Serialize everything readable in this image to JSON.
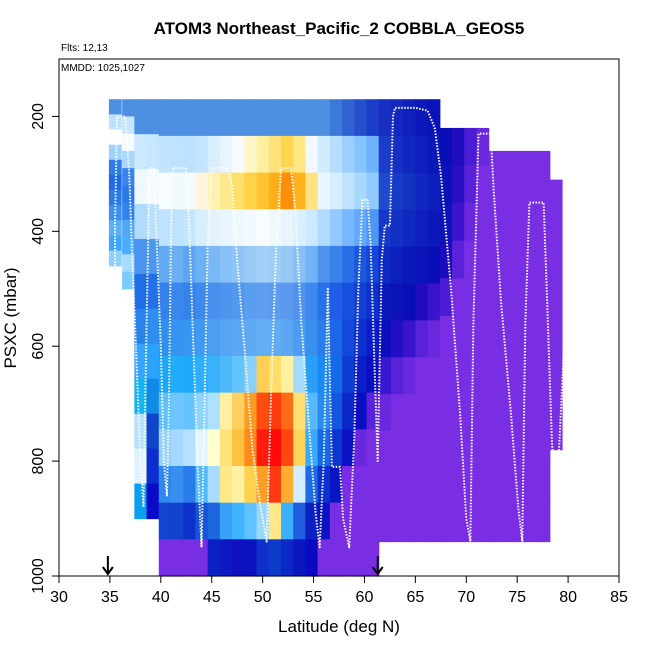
{
  "chart_data": {
    "type": "heatmap",
    "title": "ATOM3 Northeast_Pacific_2 COBBLA_GEOS5",
    "annotations": [
      "Flts: 12,13",
      "MMDD: 1025,1027"
    ],
    "xlabel": "Latitude (deg N)",
    "ylabel": "PSXC (mbar)",
    "xlim": [
      30,
      85
    ],
    "ylim": [
      1000,
      100
    ],
    "x_ticks": [
      30,
      35,
      40,
      45,
      50,
      55,
      60,
      65,
      70,
      75,
      80,
      85
    ],
    "y_ticks": [
      200,
      400,
      600,
      800,
      1000
    ],
    "markers_at_latitude": [
      34.8,
      61.3
    ],
    "grid": false,
    "columns": [
      {
        "lat": 35.5,
        "top": 170,
        "bottom": 460,
        "colors": [
          "#4d8fe0",
          "#bfe2ff",
          "#ffffff",
          "#9fd3ff",
          "#2f7bea",
          "#1e6ae8",
          "#2a7ae8",
          "#3a8ff0",
          "#5cb0f8",
          "#3ea6ff",
          "#8fd0ff"
        ]
      },
      {
        "lat": 36.8,
        "top": 170,
        "bottom": 500,
        "colors": [
          "#4d8fe0",
          "#c6e6ff",
          "#f5fbff",
          "#a8d6ff",
          "#3884ec",
          "#2a78ea",
          "#3384ea",
          "#53a6f5",
          "#4aaeff",
          "#a7dcff",
          "#7ccbff"
        ]
      },
      {
        "lat": 38.0,
        "top": 170,
        "bottom": 900,
        "colors": [
          "#4d8fe0",
          "#cbe8ff",
          "#eef8ff",
          "#b0dbff",
          "#4a94ef",
          "#1f6ee8",
          "#2a83e9",
          "#38a2ff",
          "#12b4f2",
          "#b4e2ff",
          "#dff2ff",
          "#0c9ef0"
        ]
      },
      {
        "lat": 39.2,
        "top": 170,
        "bottom": 900,
        "colors": [
          "#4d8fe0",
          "#c7e6ff",
          "#f4faff",
          "#b8dfff",
          "#4c98f0",
          "#2370e8",
          "#2f8dee",
          "#2aa4fb",
          "#118ae6",
          "#0f45c9",
          "#0c2ed0",
          "#0a0ac8"
        ]
      },
      {
        "lat": 40.4,
        "top": 170,
        "bottom": 1000,
        "colors": [
          "#4d8fe0",
          "#c2e4ff",
          "#f7fcff",
          "#bfe3ff",
          "#64aaf2",
          "#3482ea",
          "#2f90ee",
          "#1ca6fa",
          "#5ec0ff",
          "#97d2ff",
          "#2f88ef",
          "#1244d0",
          "#7a2ee3"
        ]
      },
      {
        "lat": 41.6,
        "top": 170,
        "bottom": 1000,
        "colors": [
          "#4d8fe0",
          "#bfe3ff",
          "#f1faff",
          "#bfe3ff",
          "#6cb0f4",
          "#3a88ec",
          "#3594ef",
          "#22aafb",
          "#6fc6ff",
          "#a3d8ff",
          "#3790f0",
          "#1342cf",
          "#7a2ee3"
        ]
      },
      {
        "lat": 42.8,
        "top": 170,
        "bottom": 1000,
        "colors": [
          "#4d8fe0",
          "#bde2ff",
          "#f3fbff",
          "#c5e6ff",
          "#5da5f1",
          "#3583ea",
          "#3996ef",
          "#1eaafb",
          "#65c4ff",
          "#b5e1ff",
          "#2a7cec",
          "#0d32c9",
          "#7a2ee3"
        ]
      },
      {
        "lat": 44.0,
        "top": 170,
        "bottom": 1000,
        "colors": [
          "#4d8fe0",
          "#c4e5ff",
          "#fdf6da",
          "#d7eeff",
          "#6cb1f5",
          "#3d8aec",
          "#3e9af0",
          "#2eaefb",
          "#8dd4ff",
          "#e3f4ff",
          "#53b9ff",
          "#1554d6",
          "#7a2ee3"
        ]
      },
      {
        "lat": 45.2,
        "top": 170,
        "bottom": 1000,
        "colors": [
          "#4d8fe0",
          "#d9efff",
          "#fff1b0",
          "#e3f3ff",
          "#79b8f5",
          "#4790ee",
          "#4b9ff1",
          "#3ab2fb",
          "#aee0ff",
          "#ffffd0",
          "#a7dcff",
          "#1e66dd",
          "#0b1fc4"
        ]
      },
      {
        "lat": 46.4,
        "top": 170,
        "bottom": 1000,
        "colors": [
          "#4d8fe0",
          "#e8f5ff",
          "#ffe88c",
          "#e9f6ff",
          "#86c0f6",
          "#4d95ee",
          "#55a5f2",
          "#4db9fb",
          "#fff0a0",
          "#ffe27a",
          "#ffe888",
          "#3aa0f8",
          "#0d17c2"
        ]
      },
      {
        "lat": 47.6,
        "top": 170,
        "bottom": 1000,
        "colors": [
          "#4d8fe0",
          "#f5fbff",
          "#ffe06a",
          "#eef8ff",
          "#8fc5f6",
          "#5398ef",
          "#5aa8f3",
          "#63c3fb",
          "#ffd060",
          "#ffc040",
          "#fff2a4",
          "#3fb5ff",
          "#0e10bf"
        ]
      },
      {
        "lat": 48.8,
        "top": 170,
        "bottom": 1000,
        "colors": [
          "#4d8fe0",
          "#fff6c8",
          "#ffd24a",
          "#f3faff",
          "#99cbf6",
          "#5a9eef",
          "#5eabf3",
          "#8ad0fb",
          "#ff9b22",
          "#ff8a1a",
          "#ffd24e",
          "#5fc3ff",
          "#0d12bf"
        ]
      },
      {
        "lat": 50.0,
        "top": 170,
        "bottom": 1000,
        "colors": [
          "#4d8fe0",
          "#ffefa0",
          "#ffc430",
          "#f8fcff",
          "#a3d0f7",
          "#609fef",
          "#64aff3",
          "#ffcf55",
          "#ff4d10",
          "#ff1c0a",
          "#ff9d24",
          "#9ad7ff",
          "#0d2fcb"
        ]
      },
      {
        "lat": 51.2,
        "top": 170,
        "bottom": 1000,
        "colors": [
          "#4d8fe0",
          "#ffe37a",
          "#ffae18",
          "#eef8ff",
          "#9ecdf7",
          "#5e9cef",
          "#62acf3",
          "#ffdd66",
          "#ff3a0d",
          "#ff0a08",
          "#ff3a12",
          "#ffe888",
          "#0c3acb"
        ]
      },
      {
        "lat": 52.4,
        "top": 170,
        "bottom": 1000,
        "colors": [
          "#4d8fe0",
          "#ffd552",
          "#ff8f0a",
          "#e8f5ff",
          "#97c9f6",
          "#5b99ef",
          "#5ca6f2",
          "#fff0a2",
          "#ff6c18",
          "#ff4810",
          "#ffad30",
          "#3ab0ff",
          "#0b28c7"
        ]
      },
      {
        "lat": 53.6,
        "top": 170,
        "bottom": 1000,
        "colors": [
          "#4d8fe0",
          "#ffe883",
          "#ffb21e",
          "#dbf0ff",
          "#88c1f5",
          "#4f93ee",
          "#4c9cf1",
          "#a4dbff",
          "#ffe070",
          "#ffd55a",
          "#d1edff",
          "#1f5ee0",
          "#0b18c2"
        ]
      },
      {
        "lat": 54.8,
        "top": 170,
        "bottom": 1000,
        "colors": [
          "#4d8fe0",
          "#f1f9ff",
          "#ffe082",
          "#cde9ff",
          "#71b4f5",
          "#3f88ec",
          "#3a8eef",
          "#2a9ff7",
          "#58b9ff",
          "#3aa8ff",
          "#1f6be4",
          "#0c20c4",
          "#0a0ac0"
        ]
      },
      {
        "lat": 56.0,
        "top": 170,
        "bottom": 1000,
        "colors": [
          "#4d8fe0",
          "#d1ebff",
          "#e9f6ff",
          "#b0dbff",
          "#4f93ee",
          "#2670ea",
          "#2a7eec",
          "#1e88f2",
          "#2a8aee",
          "#156ae6",
          "#0d32cf",
          "#0a12c2",
          "#7a2ee3"
        ]
      },
      {
        "lat": 57.2,
        "top": 170,
        "bottom": 1000,
        "colors": [
          "#3d7ad8",
          "#b6deff",
          "#d6efff",
          "#93c9ff",
          "#3a82ea",
          "#1e5ee4",
          "#1c66e8",
          "#146ae8",
          "#1457df",
          "#0d36cf",
          "#0a15c4",
          "#7a2ee3",
          "#7a2ee3"
        ]
      },
      {
        "lat": 58.4,
        "top": 170,
        "bottom": 1000,
        "colors": [
          "#2f63d2",
          "#9ccfff",
          "#c0e4ff",
          "#79b7ff",
          "#2a6ee6",
          "#1850de",
          "#1249d8",
          "#0f3dd2",
          "#0b28cb",
          "#0a14c4",
          "#7a2ee3",
          "#7a2ee3",
          "#7a2ee3"
        ]
      },
      {
        "lat": 59.6,
        "top": 170,
        "bottom": 1000,
        "colors": [
          "#2550cd",
          "#86c4ff",
          "#a9d8ff",
          "#63a8fa",
          "#1b58df",
          "#133fd6",
          "#0e30cf",
          "#0b1ec9",
          "#0a10c2",
          "#6a28de",
          "#7a2ee3",
          "#7a2ee3",
          "#7a2ee3"
        ]
      },
      {
        "lat": 60.8,
        "top": 170,
        "bottom": 1000,
        "colors": [
          "#1c3dc8",
          "#6fb4fb",
          "#92caff",
          "#4f96f5",
          "#1446d8",
          "#0d2fcd",
          "#0a1dc8",
          "#0a10c2",
          "#5a22da",
          "#7a2ee3",
          "#7a2ee3",
          "#7a2ee3",
          "#7a2ee3"
        ]
      },
      {
        "lat": 62.0,
        "top": 170,
        "bottom": 940,
        "colors": [
          "#1630c2",
          "#1a3cc8",
          "#1f4acd",
          "#1538c8",
          "#0f28c2",
          "#0a18bc",
          "#0a0ebc",
          "#3a18cf",
          "#6a28de",
          "#7a2ee3",
          "#7a2ee3",
          "#7a2ee3"
        ]
      },
      {
        "lat": 63.2,
        "top": 170,
        "bottom": 940,
        "colors": [
          "#1228c0",
          "#1530c2",
          "#173bc8",
          "#1230c2",
          "#0d20bd",
          "#0a12b8",
          "#240ec4",
          "#5a22d8",
          "#7a2ee3",
          "#7a2ee3",
          "#7a2ee3",
          "#7a2ee3"
        ]
      },
      {
        "lat": 64.4,
        "top": 170,
        "bottom": 940,
        "colors": [
          "#0e20bd",
          "#1028bf",
          "#1232c2",
          "#0f28bf",
          "#0b18ba",
          "#0a0eb6",
          "#3a14cc",
          "#6a28de",
          "#7a2ee3",
          "#7a2ee3",
          "#7a2ee3",
          "#7a2ee3"
        ]
      },
      {
        "lat": 65.6,
        "top": 170,
        "bottom": 940,
        "colors": [
          "#0c18ba",
          "#0d20bd",
          "#0f28bf",
          "#0d20bd",
          "#0a14b8",
          "#200cc0",
          "#5a22d8",
          "#7a2ee3",
          "#7a2ee3",
          "#7a2ee3",
          "#7a2ee3",
          "#7a2ee3"
        ]
      },
      {
        "lat": 66.8,
        "top": 170,
        "bottom": 940,
        "colors": [
          "#0a12b8",
          "#0b18ba",
          "#0c1ebc",
          "#0b18ba",
          "#0a0eb6",
          "#3a14cc",
          "#6a28de",
          "#7a2ee3",
          "#7a2ee3",
          "#7a2ee3",
          "#7a2ee3",
          "#7a2ee3"
        ]
      },
      {
        "lat": 68.0,
        "top": 220,
        "bottom": 940,
        "colors": [
          "#0a0eb6",
          "#0a12b8",
          "#0a14b8",
          "#1a0cbe",
          "#4a1cd4",
          "#7a2ee3",
          "#7a2ee3",
          "#7a2ee3",
          "#7a2ee3",
          "#7a2ee3",
          "#7a2ee3"
        ]
      },
      {
        "lat": 69.2,
        "top": 220,
        "bottom": 940,
        "colors": [
          "#200cc0",
          "#2a0ec4",
          "#3a14cc",
          "#5a22d8",
          "#7a2ee3",
          "#7a2ee3",
          "#7a2ee3",
          "#7a2ee3",
          "#7a2ee3",
          "#7a2ee3",
          "#7a2ee3"
        ]
      },
      {
        "lat": 70.4,
        "top": 220,
        "bottom": 940,
        "colors": [
          "#4a1cd4",
          "#5a22d8",
          "#6a28de",
          "#7a2ee3",
          "#7a2ee3",
          "#7a2ee3",
          "#7a2ee3",
          "#7a2ee3",
          "#7a2ee3",
          "#7a2ee3",
          "#7a2ee3"
        ]
      },
      {
        "lat": 71.6,
        "top": 220,
        "bottom": 940,
        "colors": [
          "#6a28de",
          "#7a2ee3",
          "#7a2ee3",
          "#7a2ee3",
          "#7a2ee3",
          "#7a2ee3",
          "#7a2ee3",
          "#7a2ee3",
          "#7a2ee3",
          "#7a2ee3",
          "#7a2ee3"
        ]
      },
      {
        "lat": 72.8,
        "top": 260,
        "bottom": 940,
        "colors": [
          "#7a2ee3",
          "#7a2ee3",
          "#7a2ee3",
          "#7a2ee3",
          "#7a2ee3",
          "#7a2ee3",
          "#7a2ee3",
          "#7a2ee3",
          "#7a2ee3",
          "#7a2ee3"
        ]
      },
      {
        "lat": 74.0,
        "top": 260,
        "bottom": 940,
        "colors": [
          "#7a2ee3",
          "#7a2ee3",
          "#7a2ee3",
          "#7a2ee3",
          "#7a2ee3",
          "#7a2ee3",
          "#7a2ee3",
          "#7a2ee3",
          "#7a2ee3",
          "#7a2ee3"
        ]
      },
      {
        "lat": 75.2,
        "top": 260,
        "bottom": 940,
        "colors": [
          "#7a2ee3",
          "#7a2ee3",
          "#7a2ee3",
          "#7a2ee3",
          "#7a2ee3",
          "#7a2ee3",
          "#7a2ee3",
          "#7a2ee3",
          "#7a2ee3",
          "#7a2ee3"
        ]
      },
      {
        "lat": 76.4,
        "top": 260,
        "bottom": 940,
        "colors": [
          "#7a2ee3",
          "#7a2ee3",
          "#7a2ee3",
          "#7a2ee3",
          "#7a2ee3",
          "#7a2ee3",
          "#7a2ee3",
          "#7a2ee3",
          "#7a2ee3",
          "#7a2ee3"
        ]
      },
      {
        "lat": 77.6,
        "top": 260,
        "bottom": 940,
        "colors": [
          "#7a2ee3",
          "#7a2ee3",
          "#7a2ee3",
          "#7a2ee3",
          "#7a2ee3",
          "#7a2ee3",
          "#7a2ee3",
          "#7a2ee3",
          "#7a2ee3",
          "#7a2ee3"
        ]
      },
      {
        "lat": 78.8,
        "top": 310,
        "bottom": 780,
        "colors": [
          "#7a2ee3",
          "#7a2ee3",
          "#7a2ee3",
          "#7a2ee3",
          "#7a2ee3",
          "#7a2ee3",
          "#7a2ee3"
        ]
      }
    ],
    "flight_track": [
      [
        35.5,
        460
      ],
      [
        35.5,
        390
      ],
      [
        35.7,
        200
      ],
      [
        36.5,
        200
      ],
      [
        36.9,
        300
      ],
      [
        37.2,
        450
      ],
      [
        37.6,
        620
      ],
      [
        38.0,
        800
      ],
      [
        38.3,
        880
      ],
      [
        38.6,
        560
      ],
      [
        38.9,
        290
      ],
      [
        39.3,
        290
      ],
      [
        39.6,
        420
      ],
      [
        40.0,
        600
      ],
      [
        40.3,
        800
      ],
      [
        40.6,
        860
      ],
      [
        40.8,
        700
      ],
      [
        41.0,
        400
      ],
      [
        41.2,
        290
      ],
      [
        42.5,
        290
      ],
      [
        42.8,
        400
      ],
      [
        43.2,
        600
      ],
      [
        43.6,
        800
      ],
      [
        44.0,
        950
      ],
      [
        44.3,
        700
      ],
      [
        44.6,
        420
      ],
      [
        45.0,
        290
      ],
      [
        46.5,
        290
      ],
      [
        47.0,
        320
      ],
      [
        47.5,
        450
      ],
      [
        48.2,
        600
      ],
      [
        49.0,
        780
      ],
      [
        49.8,
        880
      ],
      [
        50.4,
        940
      ],
      [
        50.8,
        700
      ],
      [
        51.3,
        440
      ],
      [
        51.8,
        290
      ],
      [
        52.8,
        290
      ],
      [
        53.2,
        360
      ],
      [
        53.8,
        560
      ],
      [
        54.6,
        750
      ],
      [
        55.2,
        890
      ],
      [
        55.6,
        950
      ],
      [
        56.0,
        800
      ],
      [
        56.4,
        500
      ],
      [
        56.8,
        810
      ],
      [
        57.6,
        810
      ],
      [
        57.9,
        900
      ],
      [
        58.5,
        950
      ],
      [
        59.0,
        760
      ],
      [
        59.4,
        500
      ],
      [
        59.8,
        345
      ],
      [
        60.3,
        345
      ],
      [
        60.6,
        420
      ],
      [
        61.0,
        640
      ],
      [
        61.3,
        800
      ],
      [
        61.7,
        450
      ],
      [
        62.0,
        390
      ],
      [
        62.5,
        390
      ],
      [
        62.8,
        200
      ],
      [
        63.0,
        185
      ],
      [
        65.0,
        185
      ],
      [
        66.2,
        190
      ],
      [
        66.9,
        220
      ],
      [
        67.5,
        300
      ],
      [
        68.5,
        500
      ],
      [
        69.4,
        720
      ],
      [
        70.0,
        900
      ],
      [
        70.4,
        940
      ],
      [
        70.7,
        560
      ],
      [
        71.2,
        230
      ],
      [
        72.4,
        230
      ],
      [
        72.7,
        330
      ],
      [
        73.4,
        520
      ],
      [
        74.4,
        720
      ],
      [
        75.1,
        880
      ],
      [
        75.5,
        940
      ],
      [
        75.8,
        560
      ],
      [
        76.2,
        350
      ],
      [
        77.6,
        350
      ],
      [
        77.9,
        500
      ],
      [
        78.4,
        760
      ],
      [
        78.8,
        890
      ],
      [
        79.5,
        640
      ],
      [
        80.0,
        350
      ]
    ]
  }
}
